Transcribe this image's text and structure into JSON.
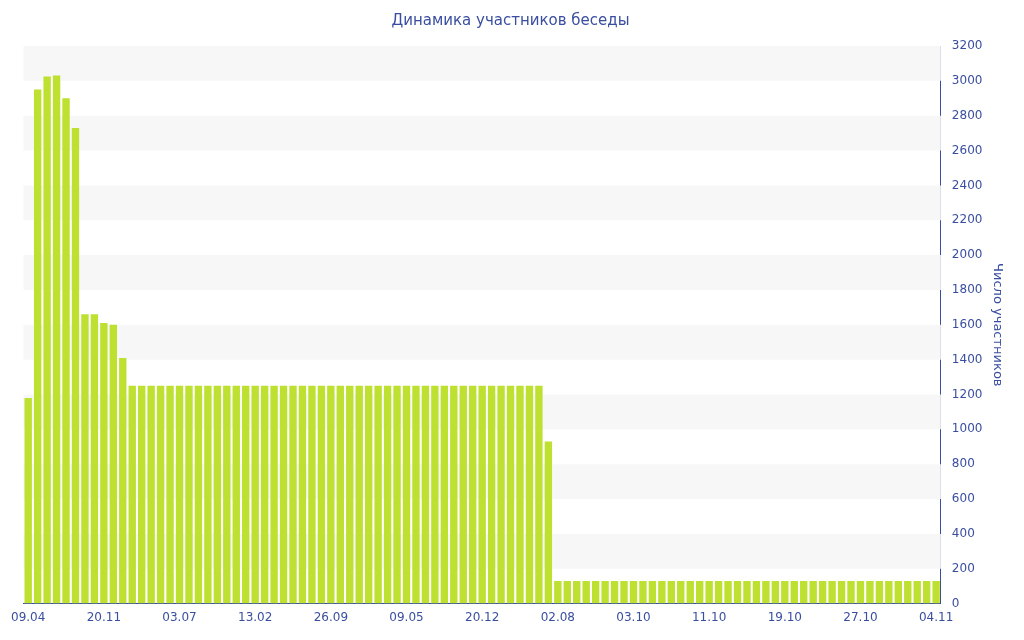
{
  "chart_data": {
    "type": "bar",
    "title": "Динамика участников беседы",
    "ylabel": "Число участников",
    "categories": [
      "09.04",
      null,
      null,
      null,
      null,
      null,
      null,
      null,
      "20.11",
      null,
      null,
      null,
      null,
      null,
      null,
      null,
      "03.07",
      null,
      null,
      null,
      null,
      null,
      null,
      null,
      "13.02",
      null,
      null,
      null,
      null,
      null,
      null,
      null,
      "26.09",
      null,
      null,
      null,
      null,
      null,
      null,
      null,
      "09.05",
      null,
      null,
      null,
      null,
      null,
      null,
      null,
      "20.12",
      null,
      null,
      null,
      null,
      null,
      null,
      null,
      "02.08",
      null,
      null,
      null,
      null,
      null,
      null,
      null,
      "03.10",
      null,
      null,
      null,
      null,
      null,
      null,
      null,
      "11.10",
      null,
      null,
      null,
      null,
      null,
      null,
      null,
      "19.10",
      null,
      null,
      null,
      null,
      null,
      null,
      null,
      "27.10",
      null,
      null,
      null,
      null,
      null,
      null,
      null,
      "04.11"
    ],
    "values": [
      1180,
      2950,
      3025,
      3030,
      2900,
      2730,
      1660,
      1660,
      1610,
      1600,
      1410,
      1250,
      1250,
      1250,
      1250,
      1250,
      1250,
      1250,
      1250,
      1250,
      1250,
      1250,
      1250,
      1250,
      1250,
      1250,
      1250,
      1250,
      1250,
      1250,
      1250,
      1250,
      1250,
      1250,
      1250,
      1250,
      1250,
      1250,
      1250,
      1250,
      1250,
      1250,
      1250,
      1250,
      1250,
      1250,
      1250,
      1250,
      1250,
      1250,
      1250,
      1250,
      1250,
      1250,
      1250,
      930,
      130,
      130,
      130,
      130,
      130,
      130,
      130,
      130,
      130,
      130,
      130,
      130,
      130,
      130,
      130,
      130,
      130,
      130,
      130,
      130,
      130,
      130,
      130,
      130,
      130,
      130,
      130,
      130,
      130,
      130,
      130,
      130,
      130,
      130,
      130,
      130,
      130,
      130,
      130,
      130,
      130
    ],
    "color": "#bde031",
    "ylim": [
      0,
      3200
    ],
    "yticks": [
      0,
      200,
      400,
      600,
      800,
      1000,
      1200,
      1400,
      1600,
      1800,
      2000,
      2200,
      2400,
      2600,
      2800,
      3000,
      3200
    ]
  }
}
